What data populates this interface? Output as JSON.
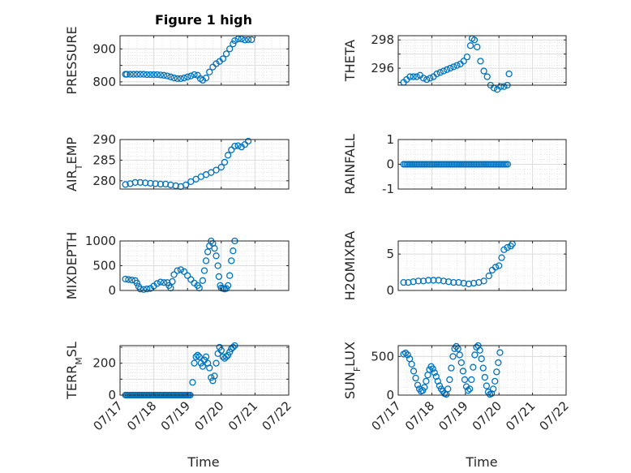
{
  "figure": {
    "title": "Figure 1 high",
    "xlabel": "Time",
    "series_color": "#0072BD"
  },
  "chart_data": [
    {
      "type": "scatter",
      "id": "pressure",
      "title": "Figure 1 high",
      "ylabel": "PRESSURE",
      "ylim": [
        790,
        940
      ],
      "yticks": [
        800,
        850,
        900
      ],
      "yticklabels": [
        "800",
        "",
        "900"
      ],
      "xlim": [
        0,
        5
      ],
      "xticks": [
        0,
        1,
        2,
        3,
        4,
        5
      ],
      "xticklabels": [],
      "points": [
        [
          0.16,
          823
        ],
        [
          0.2,
          823
        ],
        [
          0.3,
          823
        ],
        [
          0.4,
          823
        ],
        [
          0.5,
          823
        ],
        [
          0.6,
          823
        ],
        [
          0.7,
          823
        ],
        [
          0.8,
          822
        ],
        [
          0.9,
          822
        ],
        [
          1.0,
          822
        ],
        [
          1.1,
          822
        ],
        [
          1.2,
          821
        ],
        [
          1.3,
          820
        ],
        [
          1.4,
          818
        ],
        [
          1.5,
          815
        ],
        [
          1.6,
          812
        ],
        [
          1.7,
          810
        ],
        [
          1.8,
          810
        ],
        [
          1.9,
          812
        ],
        [
          2.0,
          815
        ],
        [
          2.1,
          818
        ],
        [
          2.2,
          822
        ],
        [
          2.3,
          820
        ],
        [
          2.38,
          810
        ],
        [
          2.45,
          805
        ],
        [
          2.55,
          812
        ],
        [
          2.65,
          830
        ],
        [
          2.75,
          845
        ],
        [
          2.85,
          855
        ],
        [
          2.95,
          862
        ],
        [
          3.05,
          870
        ],
        [
          3.15,
          885
        ],
        [
          3.25,
          900
        ],
        [
          3.35,
          915
        ],
        [
          3.4,
          925
        ],
        [
          3.5,
          930
        ],
        [
          3.6,
          930
        ],
        [
          3.7,
          927
        ],
        [
          3.8,
          928
        ],
        [
          3.9,
          928
        ]
      ]
    },
    {
      "type": "scatter",
      "id": "theta",
      "title": "",
      "ylabel": "THETA",
      "ylim": [
        294.8,
        298.3
      ],
      "yticks": [
        295,
        296,
        297,
        298
      ],
      "yticklabels": [
        "",
        "296",
        "",
        "298"
      ],
      "xlim": [
        0,
        5
      ],
      "xticks": [
        0,
        1,
        2,
        3,
        4,
        5
      ],
      "xticklabels": [],
      "points": [
        [
          0.16,
          295.0
        ],
        [
          0.25,
          295.2
        ],
        [
          0.35,
          295.4
        ],
        [
          0.45,
          295.4
        ],
        [
          0.55,
          295.4
        ],
        [
          0.65,
          295.5
        ],
        [
          0.75,
          295.3
        ],
        [
          0.85,
          295.2
        ],
        [
          0.95,
          295.3
        ],
        [
          1.05,
          295.4
        ],
        [
          1.15,
          295.6
        ],
        [
          1.25,
          295.7
        ],
        [
          1.35,
          295.8
        ],
        [
          1.45,
          295.9
        ],
        [
          1.55,
          296.0
        ],
        [
          1.65,
          296.1
        ],
        [
          1.75,
          296.2
        ],
        [
          1.85,
          296.3
        ],
        [
          1.95,
          296.5
        ],
        [
          2.05,
          296.8
        ],
        [
          2.15,
          297.6
        ],
        [
          2.2,
          298.1
        ],
        [
          2.27,
          298.0
        ],
        [
          2.35,
          297.5
        ],
        [
          2.45,
          296.5
        ],
        [
          2.55,
          295.8
        ],
        [
          2.65,
          295.4
        ],
        [
          2.75,
          294.8
        ],
        [
          2.85,
          294.6
        ],
        [
          2.95,
          294.5
        ],
        [
          3.05,
          294.7
        ],
        [
          3.15,
          294.7
        ],
        [
          3.25,
          294.8
        ],
        [
          3.3,
          295.6
        ]
      ]
    },
    {
      "type": "scatter",
      "id": "air_temp",
      "title": "",
      "ylabel": "AIR_TEMP",
      "ylim": [
        278,
        290
      ],
      "yticks": [
        280,
        285,
        290
      ],
      "yticklabels": [
        "280",
        "285",
        "290"
      ],
      "xlim": [
        0,
        5
      ],
      "xticks": [
        0,
        1,
        2,
        3,
        4,
        5
      ],
      "xticklabels": [],
      "points": [
        [
          0.16,
          279.1
        ],
        [
          0.3,
          279.3
        ],
        [
          0.45,
          279.6
        ],
        [
          0.6,
          279.6
        ],
        [
          0.75,
          279.5
        ],
        [
          0.9,
          279.4
        ],
        [
          1.05,
          279.3
        ],
        [
          1.2,
          279.2
        ],
        [
          1.35,
          279.2
        ],
        [
          1.5,
          279.0
        ],
        [
          1.65,
          278.8
        ],
        [
          1.8,
          278.6
        ],
        [
          1.95,
          279.0
        ],
        [
          2.1,
          279.8
        ],
        [
          2.25,
          280.4
        ],
        [
          2.4,
          281.0
        ],
        [
          2.55,
          281.5
        ],
        [
          2.7,
          282.0
        ],
        [
          2.85,
          282.6
        ],
        [
          3.0,
          283.3
        ],
        [
          3.1,
          284.5
        ],
        [
          3.2,
          286.2
        ],
        [
          3.3,
          287.5
        ],
        [
          3.4,
          288.4
        ],
        [
          3.5,
          288.5
        ],
        [
          3.6,
          288.2
        ],
        [
          3.7,
          288.8
        ],
        [
          3.8,
          289.6
        ]
      ]
    },
    {
      "type": "scatter",
      "id": "rainfall",
      "title": "",
      "ylabel": "RAINFALL",
      "ylim": [
        -1,
        1
      ],
      "yticks": [
        -1,
        0,
        1
      ],
      "yticklabels": [
        "-1",
        "0",
        "1"
      ],
      "xlim": [
        0,
        5
      ],
      "xticks": [
        0,
        1,
        2,
        3,
        4,
        5
      ],
      "xticklabels": [],
      "points_const": {
        "from": 0.16,
        "to": 3.3,
        "step": 0.05,
        "y": 0
      }
    },
    {
      "type": "scatter",
      "id": "mixdepth",
      "title": "",
      "ylabel": "MIXDEPTH",
      "ylim": [
        0,
        1000
      ],
      "yticks": [
        0,
        500,
        1000
      ],
      "yticklabels": [
        "0",
        "500",
        "1000"
      ],
      "xlim": [
        0,
        5
      ],
      "xticks": [
        0,
        1,
        2,
        3,
        4,
        5
      ],
      "xticklabels": [],
      "points": [
        [
          0.16,
          230
        ],
        [
          0.25,
          220
        ],
        [
          0.35,
          210
        ],
        [
          0.45,
          200
        ],
        [
          0.5,
          150
        ],
        [
          0.55,
          80
        ],
        [
          0.6,
          30
        ],
        [
          0.7,
          20
        ],
        [
          0.8,
          30
        ],
        [
          0.9,
          40
        ],
        [
          1.0,
          90
        ],
        [
          1.1,
          140
        ],
        [
          1.2,
          170
        ],
        [
          1.3,
          160
        ],
        [
          1.4,
          160
        ],
        [
          1.45,
          100
        ],
        [
          1.5,
          50
        ],
        [
          1.55,
          180
        ],
        [
          1.6,
          320
        ],
        [
          1.7,
          400
        ],
        [
          1.8,
          420
        ],
        [
          1.9,
          380
        ],
        [
          2.0,
          300
        ],
        [
          2.1,
          220
        ],
        [
          2.2,
          150
        ],
        [
          2.3,
          100
        ],
        [
          2.35,
          50
        ],
        [
          2.45,
          200
        ],
        [
          2.5,
          400
        ],
        [
          2.55,
          600
        ],
        [
          2.6,
          780
        ],
        [
          2.65,
          900
        ],
        [
          2.7,
          1000
        ],
        [
          2.75,
          950
        ],
        [
          2.8,
          850
        ],
        [
          2.85,
          700
        ],
        [
          2.9,
          500
        ],
        [
          2.93,
          280
        ],
        [
          2.97,
          100
        ],
        [
          3.0,
          50
        ],
        [
          3.05,
          40
        ],
        [
          3.1,
          30
        ],
        [
          3.15,
          40
        ],
        [
          3.2,
          100
        ],
        [
          3.25,
          300
        ],
        [
          3.3,
          600
        ],
        [
          3.35,
          800
        ],
        [
          3.4,
          1000
        ]
      ]
    },
    {
      "type": "scatter",
      "id": "h2omixra",
      "title": "",
      "ylabel": "H2OMIXRA",
      "ylim": [
        0,
        6.8
      ],
      "yticks": [
        0,
        5
      ],
      "yticklabels": [
        "0",
        "5"
      ],
      "xlim": [
        0,
        5
      ],
      "xticks": [
        0,
        1,
        2,
        3,
        4,
        5
      ],
      "xticklabels": [],
      "points": [
        [
          0.16,
          1.1
        ],
        [
          0.3,
          1.1
        ],
        [
          0.45,
          1.2
        ],
        [
          0.6,
          1.3
        ],
        [
          0.75,
          1.3
        ],
        [
          0.9,
          1.4
        ],
        [
          1.05,
          1.4
        ],
        [
          1.2,
          1.4
        ],
        [
          1.35,
          1.3
        ],
        [
          1.5,
          1.2
        ],
        [
          1.65,
          1.1
        ],
        [
          1.8,
          1.1
        ],
        [
          1.95,
          1.0
        ],
        [
          2.1,
          0.9
        ],
        [
          2.25,
          1.0
        ],
        [
          2.4,
          1.1
        ],
        [
          2.55,
          1.3
        ],
        [
          2.7,
          2.0
        ],
        [
          2.8,
          2.8
        ],
        [
          2.9,
          3.2
        ],
        [
          3.0,
          3.4
        ],
        [
          3.08,
          4.5
        ],
        [
          3.15,
          5.6
        ],
        [
          3.25,
          5.9
        ],
        [
          3.35,
          6.1
        ],
        [
          3.4,
          6.4
        ]
      ]
    },
    {
      "type": "scatter",
      "id": "terr_msl",
      "title": "",
      "ylabel": "TERR_MSL",
      "ylim": [
        0,
        310
      ],
      "yticks": [
        0,
        100,
        200,
        300
      ],
      "yticklabels": [
        "0",
        "",
        "200",
        ""
      ],
      "xlim": [
        0,
        5
      ],
      "xticks": [
        0,
        1,
        2,
        3,
        4,
        5
      ],
      "xticklabels": [
        "07/17",
        "07/18",
        "07/19",
        "07/20",
        "07/21",
        "07/22"
      ],
      "points_const": {
        "from": 0.16,
        "to": 2.1,
        "step": 0.04,
        "y": 0
      },
      "points": [
        [
          2.15,
          80
        ],
        [
          2.2,
          200
        ],
        [
          2.25,
          240
        ],
        [
          2.3,
          250
        ],
        [
          2.35,
          240
        ],
        [
          2.4,
          200
        ],
        [
          2.45,
          180
        ],
        [
          2.5,
          220
        ],
        [
          2.55,
          240
        ],
        [
          2.6,
          200
        ],
        [
          2.65,
          170
        ],
        [
          2.7,
          110
        ],
        [
          2.75,
          90
        ],
        [
          2.8,
          120
        ],
        [
          2.85,
          200
        ],
        [
          2.9,
          260
        ],
        [
          2.95,
          300
        ],
        [
          3.0,
          280
        ],
        [
          3.05,
          240
        ],
        [
          3.1,
          230
        ],
        [
          3.15,
          240
        ],
        [
          3.2,
          250
        ],
        [
          3.25,
          270
        ],
        [
          3.3,
          290
        ],
        [
          3.35,
          300
        ],
        [
          3.4,
          310
        ]
      ]
    },
    {
      "type": "scatter",
      "id": "sun_flux",
      "title": "",
      "ylabel": "SUN_FLUX",
      "ylim": [
        0,
        640
      ],
      "yticks": [
        0,
        500
      ],
      "yticklabels": [
        "0",
        "500"
      ],
      "xlim": [
        0,
        5
      ],
      "xticks": [
        0,
        1,
        2,
        3,
        4,
        5
      ],
      "xticklabels": [
        "07/17",
        "07/18",
        "07/19",
        "07/20",
        "07/21",
        "07/22"
      ],
      "points": [
        [
          0.16,
          530
        ],
        [
          0.22,
          545
        ],
        [
          0.28,
          520
        ],
        [
          0.34,
          470
        ],
        [
          0.4,
          400
        ],
        [
          0.46,
          310
        ],
        [
          0.52,
          220
        ],
        [
          0.58,
          130
        ],
        [
          0.63,
          80
        ],
        [
          0.68,
          50
        ],
        [
          0.73,
          60
        ],
        [
          0.78,
          100
        ],
        [
          0.83,
          180
        ],
        [
          0.88,
          260
        ],
        [
          0.93,
          330
        ],
        [
          0.98,
          370
        ],
        [
          1.03,
          340
        ],
        [
          1.08,
          290
        ],
        [
          1.13,
          240
        ],
        [
          1.18,
          180
        ],
        [
          1.23,
          120
        ],
        [
          1.28,
          80
        ],
        [
          1.33,
          50
        ],
        [
          1.38,
          20
        ],
        [
          1.43,
          10
        ],
        [
          1.48,
          80
        ],
        [
          1.53,
          200
        ],
        [
          1.58,
          350
        ],
        [
          1.63,
          500
        ],
        [
          1.68,
          600
        ],
        [
          1.73,
          630
        ],
        [
          1.78,
          600
        ],
        [
          1.83,
          520
        ],
        [
          1.88,
          420
        ],
        [
          1.93,
          310
        ],
        [
          1.98,
          200
        ],
        [
          2.03,
          110
        ],
        [
          2.08,
          60
        ],
        [
          2.13,
          80
        ],
        [
          2.18,
          200
        ],
        [
          2.23,
          360
        ],
        [
          2.28,
          520
        ],
        [
          2.33,
          620
        ],
        [
          2.38,
          640
        ],
        [
          2.43,
          580
        ],
        [
          2.48,
          470
        ],
        [
          2.53,
          350
        ],
        [
          2.58,
          230
        ],
        [
          2.63,
          120
        ],
        [
          2.68,
          40
        ],
        [
          2.73,
          10
        ],
        [
          2.78,
          20
        ],
        [
          2.83,
          80
        ],
        [
          2.88,
          180
        ],
        [
          2.93,
          300
        ],
        [
          2.98,
          420
        ],
        [
          3.03,
          550
        ]
      ]
    }
  ]
}
